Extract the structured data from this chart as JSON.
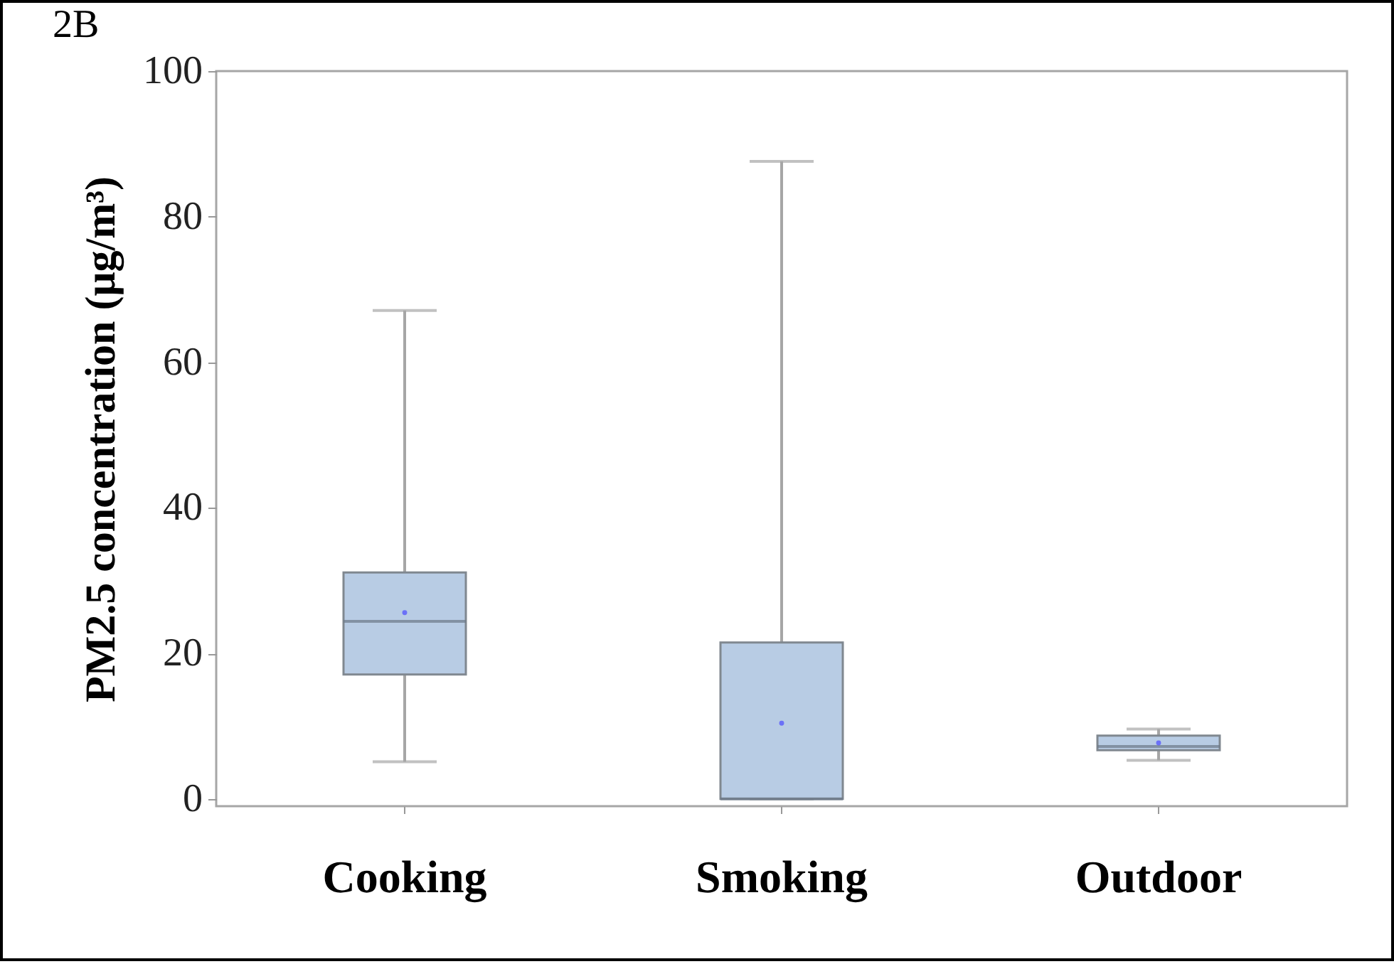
{
  "chart_data": {
    "type": "box",
    "annotations": [
      "2B"
    ],
    "ylabel": "PM2.5 concentration (μg/m³)",
    "categories": [
      "Cooking",
      "Smoking",
      "Outdoor"
    ],
    "color": "#b8cce4",
    "boxes": [
      {
        "low": 5.1,
        "q1": 17.1,
        "median": 24.4,
        "q3": 31.1,
        "high": 67.1,
        "mean": 25.6
      },
      {
        "low": 0,
        "q1": 0,
        "median": 0,
        "q3": 21.5,
        "high": 87.6,
        "mean": 10.4
      },
      {
        "low": 5.3,
        "q1": 6.7,
        "median": 7.2,
        "q3": 8.7,
        "high": 9.6,
        "mean": 7.7
      }
    ],
    "ylim": [
      -1,
      100
    ],
    "yticks": [
      0,
      20,
      40,
      60,
      80,
      100
    ],
    "grid": false
  }
}
